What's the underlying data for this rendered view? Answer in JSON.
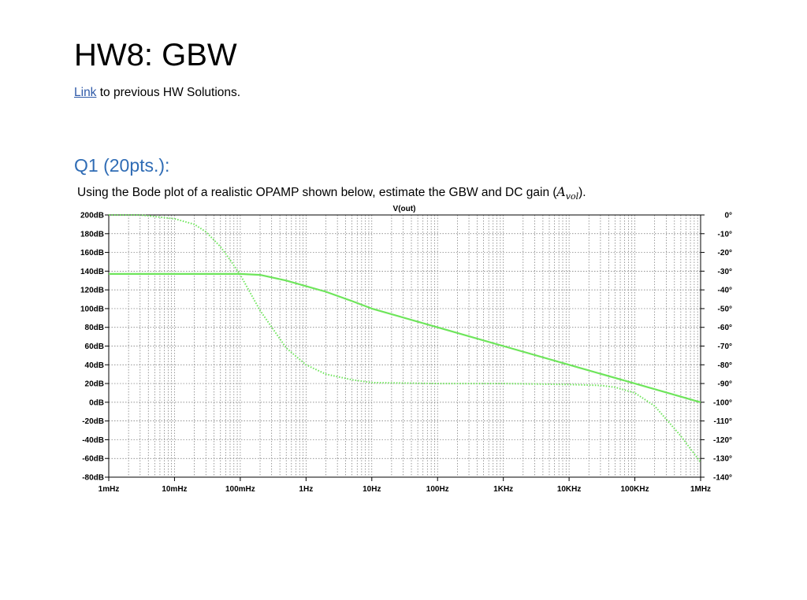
{
  "doc": {
    "title": "HW8: GBW",
    "link_text": "Link",
    "link_suffix": " to previous HW Solutions.",
    "section": "Q1 (20pts.):",
    "question_prefix": "Using the Bode plot of a realistic OPAMP shown below, estimate the GBW and DC gain (",
    "question_var": "A",
    "question_sub": "vol",
    "question_suffix": ")."
  },
  "colors": {
    "trace": "#6ee55b",
    "link": "#2f5aa8",
    "section": "#2f6cb5"
  },
  "chart_data": {
    "type": "line",
    "title": "V(out)",
    "x_scale": "log",
    "xlim": [
      0.001,
      1000000
    ],
    "x_ticks": [
      "1mHz",
      "10mHz",
      "100mHz",
      "1Hz",
      "10Hz",
      "100Hz",
      "1KHz",
      "10KHz",
      "100KHz",
      "1MHz"
    ],
    "y_left_ticks": [
      "200dB",
      "180dB",
      "160dB",
      "140dB",
      "120dB",
      "100dB",
      "80dB",
      "60dB",
      "40dB",
      "20dB",
      "0dB",
      "-20dB",
      "-40dB",
      "-60dB",
      "-80dB"
    ],
    "y_right_ticks": [
      "0°",
      "-10°",
      "-20°",
      "-30°",
      "-40°",
      "-50°",
      "-60°",
      "-70°",
      "-80°",
      "-90°",
      "-100°",
      "-110°",
      "-120°",
      "-130°",
      "-140°"
    ],
    "ylim_left": [
      -80,
      200
    ],
    "ylim_right": [
      -140,
      0
    ],
    "grid": true,
    "series": [
      {
        "name": "V(out)",
        "style": "solid",
        "axis": "left",
        "x": [
          0.001,
          0.01,
          0.05,
          0.1,
          0.2,
          0.5,
          1,
          2,
          5,
          10,
          100,
          1000,
          10000,
          100000,
          1000000
        ],
        "y": [
          137,
          137,
          137,
          137,
          136,
          130,
          124,
          118,
          108,
          100,
          80,
          60,
          40,
          20,
          0
        ]
      },
      {
        "style": "dotted",
        "axis": "right",
        "x": [
          0.001,
          0.003,
          0.01,
          0.02,
          0.03,
          0.05,
          0.07,
          0.1,
          0.2,
          0.5,
          1,
          2,
          5,
          10,
          100,
          1000,
          10000,
          30000,
          50000,
          100000,
          200000,
          500000,
          1000000
        ],
        "y": [
          0,
          0,
          -2,
          -5,
          -9,
          -17,
          -24,
          -32,
          -51,
          -71,
          -80,
          -85,
          -88,
          -89.5,
          -90,
          -90,
          -90.5,
          -91,
          -92,
          -95,
          -102,
          -118,
          -132
        ]
      }
    ]
  }
}
